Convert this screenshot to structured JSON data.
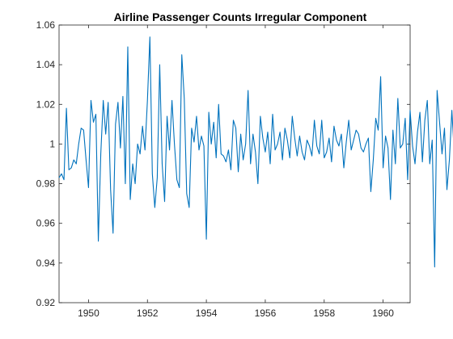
{
  "chart_data": {
    "type": "line",
    "title": "Airline Passenger Counts Irregular Component",
    "xlabel": "",
    "ylabel": "",
    "xlim": [
      1949.0,
      1960.9167
    ],
    "ylim": [
      0.92,
      1.06
    ],
    "xticks": [
      1950,
      1952,
      1954,
      1956,
      1958,
      1960
    ],
    "xtick_labels": [
      "1950",
      "1952",
      "1954",
      "1956",
      "1958",
      "1960"
    ],
    "yticks": [
      0.92,
      0.94,
      0.96,
      0.98,
      1.0,
      1.02,
      1.04,
      1.06
    ],
    "ytick_labels": [
      "0.92",
      "0.94",
      "0.96",
      "0.98",
      "1",
      "1.02",
      "1.04",
      "1.06"
    ],
    "grid": false,
    "line_color": "#0072BD",
    "series": [
      {
        "x_start": 1949.0,
        "x_step": 0.08333,
        "values": [
          0.983,
          0.985,
          0.982,
          1.018,
          0.987,
          0.988,
          0.992,
          0.99,
          1.0,
          1.008,
          1.007,
          0.992,
          0.978,
          1.022,
          1.011,
          1.015,
          0.951,
          0.995,
          1.022,
          1.005,
          1.021,
          0.977,
          0.955,
          1.01,
          1.021,
          0.998,
          1.024,
          0.98,
          1.049,
          0.972,
          0.99,
          0.98,
          1.0,
          0.995,
          1.009,
          0.997,
          1.022,
          1.054,
          0.985,
          0.968,
          0.983,
          1.04,
          0.99,
          0.971,
          1.014,
          0.997,
          1.022,
          1.0,
          0.982,
          0.978,
          1.045,
          1.023,
          0.975,
          0.968,
          1.008,
          1.001,
          1.014,
          0.997,
          1.004,
          0.999,
          0.952,
          1.016,
          1.0,
          1.011,
          0.993,
          1.02,
          0.995,
          0.994,
          0.991,
          0.997,
          0.987,
          1.012,
          1.008,
          0.986,
          1.005,
          0.992,
          1.0,
          1.027,
          0.99,
          1.005,
          0.996,
          0.98,
          1.014,
          1.003,
          0.996,
          1.006,
          0.99,
          1.015,
          0.997,
          1.0,
          1.006,
          0.992,
          1.008,
          1.002,
          0.993,
          1.014,
          1.003,
          0.994,
          1.004,
          0.996,
          0.992,
          1.002,
          0.999,
          0.994,
          1.012,
          0.999,
          0.995,
          1.012,
          0.993,
          0.996,
          1.003,
          0.991,
          1.009,
          1.002,
          0.999,
          1.005,
          0.988,
          1.001,
          1.012,
          0.997,
          1.002,
          1.007,
          1.005,
          0.998,
          0.996,
          1.0,
          1.003,
          0.976,
          0.992,
          1.013,
          1.007,
          1.034,
          0.988,
          1.004,
          0.998,
          0.972,
          1.007,
          0.99,
          1.023,
          0.998,
          1.0,
          1.013,
          0.982,
          1.017,
          0.999,
          0.99,
          1.006,
          1.016,
          0.991,
          1.012,
          1.022,
          0.99,
          1.002,
          0.938,
          1.027,
          1.011,
          0.995,
          1.008,
          0.977,
          0.992,
          1.017,
          0.995
        ]
      }
    ]
  }
}
